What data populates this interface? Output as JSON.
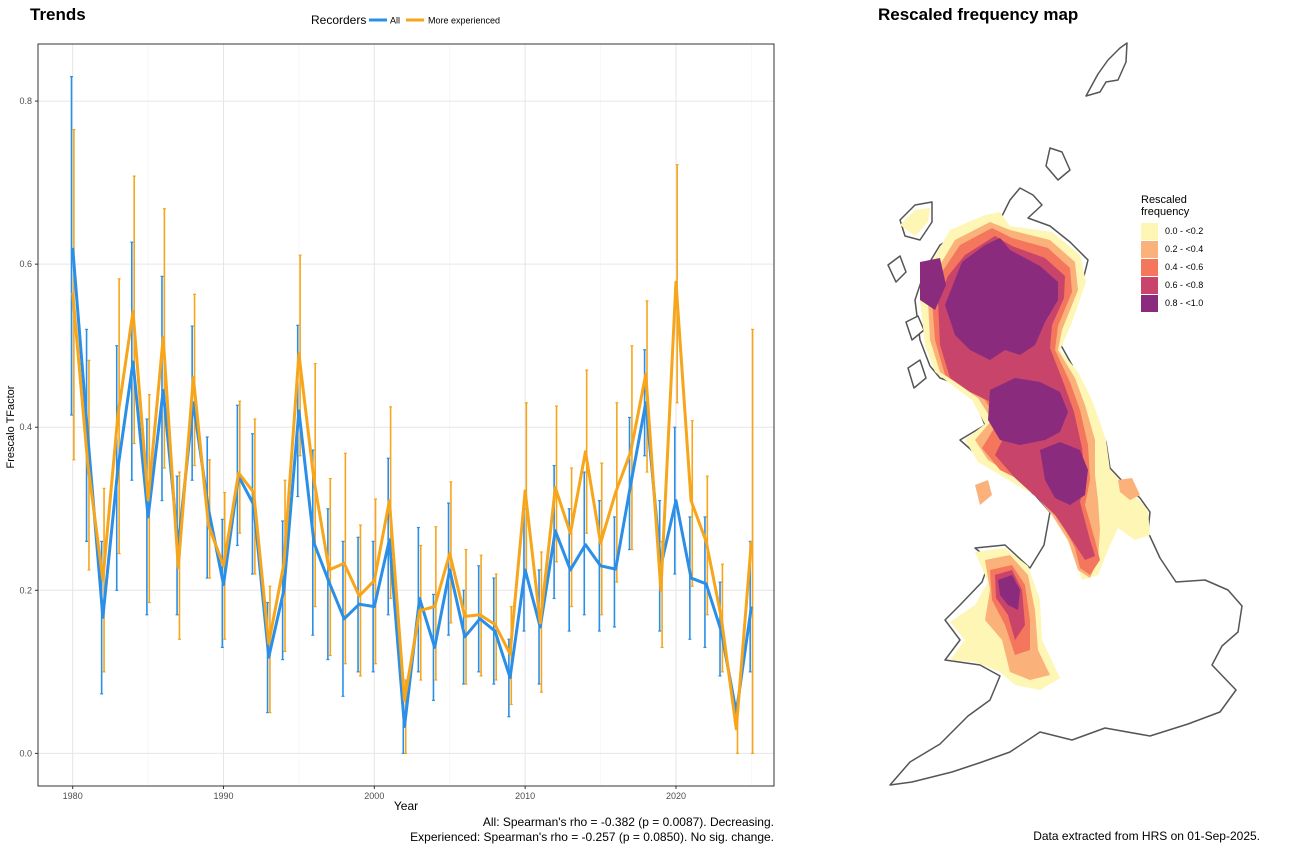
{
  "titles": {
    "trends": "Trends",
    "map": "Rescaled frequency map"
  },
  "footer": {
    "stat_all": "All: Spearman's rho = -0.382 (p = 0.0087). Decreasing.",
    "stat_exp": "Experienced: Spearman's rho = -0.257 (p = 0.0850). No sig. change.",
    "extracted": "Data extracted from HRS on 01-Sep-2025."
  },
  "chart_data": {
    "type": "line",
    "xlabel": "Year",
    "ylabel": "Frescalo TFactor",
    "xlim": [
      1977.7,
      2026.5
    ],
    "ylim": [
      -0.04,
      0.87
    ],
    "xticks": [
      1980,
      1990,
      2000,
      2010,
      2020
    ],
    "yticks": [
      0.0,
      0.2,
      0.4,
      0.6,
      0.8
    ],
    "ytick_labels": [
      "0.0",
      "0.2",
      "0.4",
      "0.6",
      "0.8"
    ],
    "grid": true,
    "legend": {
      "title": "Recorders",
      "placement": "top"
    },
    "x": [
      1980,
      1981,
      1982,
      1983,
      1984,
      1985,
      1986,
      1987,
      1988,
      1989,
      1990,
      1991,
      1992,
      1993,
      1994,
      1995,
      1996,
      1997,
      1998,
      1999,
      2000,
      2001,
      2002,
      2003,
      2004,
      2005,
      2006,
      2007,
      2008,
      2009,
      2010,
      2011,
      2012,
      2013,
      2014,
      2015,
      2016,
      2017,
      2018,
      2019,
      2020,
      2021,
      2022,
      2023,
      2024,
      2025
    ],
    "series": [
      {
        "name": "All",
        "color": "#2b8fe8",
        "values": [
          0.62,
          0.39,
          0.167,
          0.35,
          0.48,
          0.29,
          0.445,
          0.255,
          0.43,
          0.3,
          0.207,
          0.34,
          0.305,
          0.118,
          0.2,
          0.42,
          0.258,
          0.21,
          0.165,
          0.183,
          0.18,
          0.262,
          0.033,
          0.19,
          0.13,
          0.225,
          0.143,
          0.165,
          0.15,
          0.093,
          0.225,
          0.155,
          0.273,
          0.225,
          0.256,
          0.23,
          0.226,
          0.33,
          0.43,
          0.23,
          0.31,
          0.215,
          0.208,
          0.15,
          0.05,
          0.18
        ],
        "lower": [
          0.415,
          0.26,
          0.073,
          0.2,
          0.335,
          0.17,
          0.31,
          0.17,
          0.335,
          0.215,
          0.13,
          0.255,
          0.22,
          0.05,
          0.115,
          0.315,
          0.145,
          0.115,
          0.07,
          0.1,
          0.1,
          0.17,
          0.0,
          0.1,
          0.065,
          0.145,
          0.085,
          0.1,
          0.085,
          0.045,
          0.15,
          0.085,
          0.19,
          0.15,
          0.17,
          0.15,
          0.155,
          0.25,
          0.365,
          0.15,
          0.22,
          0.14,
          0.13,
          0.095,
          0.04,
          0.1
        ],
        "upper": [
          0.83,
          0.52,
          0.26,
          0.5,
          0.627,
          0.41,
          0.585,
          0.34,
          0.524,
          0.388,
          0.287,
          0.427,
          0.392,
          0.185,
          0.285,
          0.525,
          0.372,
          0.3,
          0.26,
          0.265,
          0.26,
          0.362,
          0.065,
          0.277,
          0.195,
          0.307,
          0.2,
          0.23,
          0.215,
          0.14,
          0.3,
          0.225,
          0.353,
          0.3,
          0.345,
          0.31,
          0.29,
          0.412,
          0.495,
          0.31,
          0.4,
          0.29,
          0.29,
          0.21,
          0.06,
          0.26
        ]
      },
      {
        "name": "More experienced",
        "color": "#f7a51b",
        "values": [
          0.565,
          0.355,
          0.213,
          0.415,
          0.542,
          0.311,
          0.51,
          0.228,
          0.461,
          0.28,
          0.23,
          0.344,
          0.32,
          0.135,
          0.232,
          0.49,
          0.335,
          0.225,
          0.233,
          0.193,
          0.212,
          0.31,
          0.065,
          0.175,
          0.18,
          0.245,
          0.168,
          0.17,
          0.158,
          0.122,
          0.322,
          0.16,
          0.326,
          0.27,
          0.37,
          0.258,
          0.32,
          0.37,
          0.465,
          0.2,
          0.578,
          0.31,
          0.26,
          0.167,
          0.03,
          0.26
        ],
        "lower": [
          0.36,
          0.225,
          0.1,
          0.245,
          0.38,
          0.185,
          0.35,
          0.14,
          0.353,
          0.215,
          0.14,
          0.27,
          0.22,
          0.05,
          0.125,
          0.365,
          0.18,
          0.12,
          0.11,
          0.095,
          0.11,
          0.19,
          0.0,
          0.09,
          0.09,
          0.16,
          0.085,
          0.095,
          0.09,
          0.06,
          0.215,
          0.075,
          0.235,
          0.18,
          0.27,
          0.17,
          0.21,
          0.25,
          0.345,
          0.13,
          0.43,
          0.205,
          0.17,
          0.1,
          0.0,
          0.0
        ],
        "upper": [
          0.765,
          0.482,
          0.325,
          0.582,
          0.708,
          0.44,
          0.668,
          0.345,
          0.563,
          0.36,
          0.32,
          0.432,
          0.41,
          0.205,
          0.335,
          0.611,
          0.478,
          0.337,
          0.368,
          0.28,
          0.312,
          0.425,
          0.09,
          0.255,
          0.278,
          0.333,
          0.25,
          0.243,
          0.22,
          0.18,
          0.43,
          0.247,
          0.426,
          0.35,
          0.47,
          0.356,
          0.43,
          0.5,
          0.555,
          0.26,
          0.722,
          0.408,
          0.34,
          0.232,
          0.06,
          0.52
        ]
      }
    ]
  },
  "map": {
    "legend_title": "Rescaled\nfrequency",
    "classes": [
      {
        "label": "0.0 - <0.2",
        "color": "#fdf6b5"
      },
      {
        "label": "0.2 - <0.4",
        "color": "#fbb17a"
      },
      {
        "label": "0.4 - <0.6",
        "color": "#f4765d"
      },
      {
        "label": "0.6 - <0.8",
        "color": "#c8446b"
      },
      {
        "label": "0.8 - <1.0",
        "color": "#8a2b7d"
      }
    ]
  }
}
